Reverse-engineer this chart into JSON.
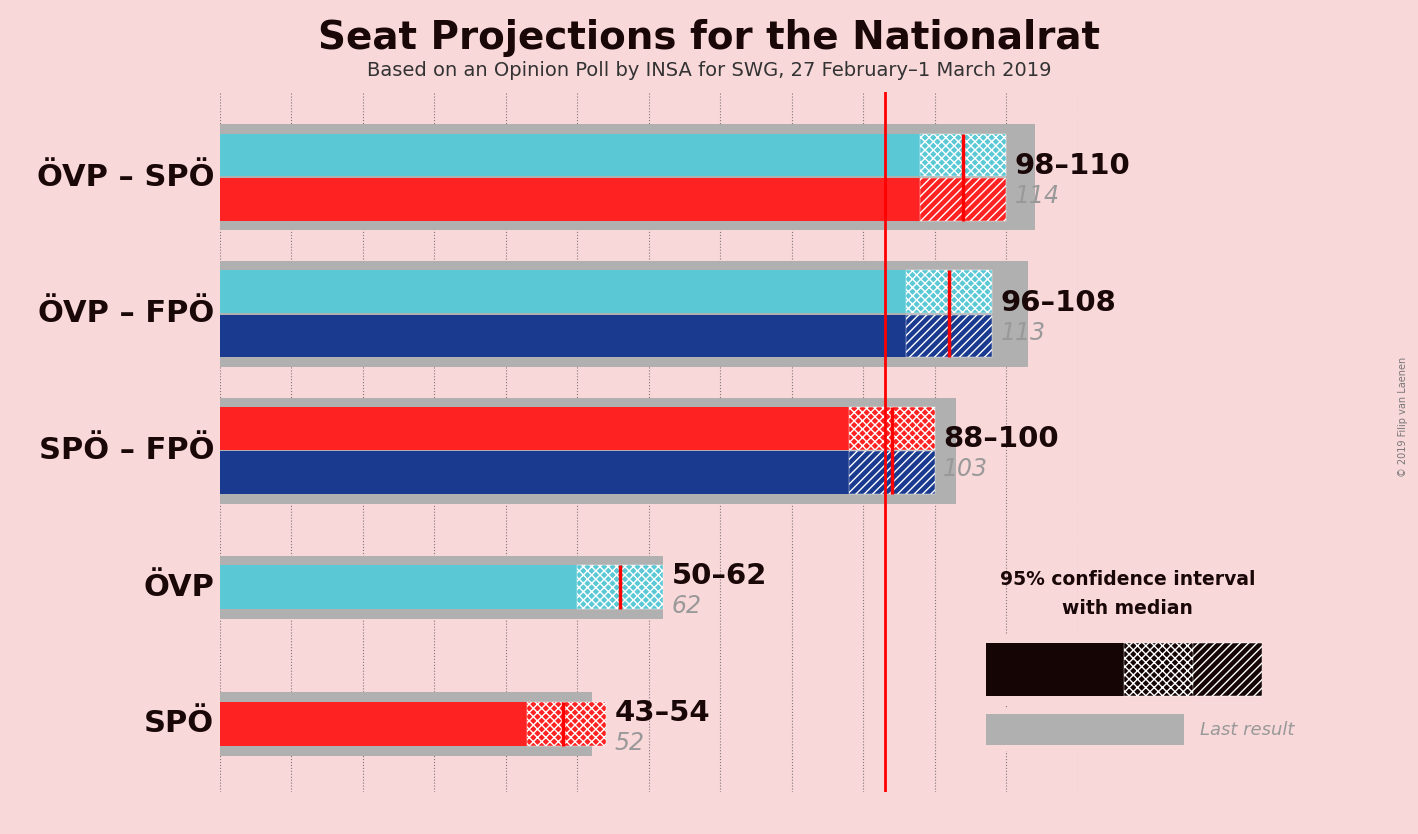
{
  "title": "Seat Projections for the Nationalrat",
  "subtitle": "Based on an Opinion Poll by INSA for SWG, 27 February–1 March 2019",
  "background_color": "#f9d8da",
  "majority_line": 93,
  "copyright": "© 2019 Filip van Laenen",
  "bars": [
    {
      "label": "ÖVP – SPÖ",
      "top_color": "#5bc8d5",
      "bottom_color": "#ff2222",
      "ci_low": 98,
      "ci_high": 110,
      "median": 104,
      "last_result": 114,
      "range_label": "98–110",
      "last_label": "114",
      "coalition": true
    },
    {
      "label": "ÖVP – FPÖ",
      "top_color": "#5bc8d5",
      "bottom_color": "#1a3a8f",
      "ci_low": 96,
      "ci_high": 108,
      "median": 102,
      "last_result": 113,
      "range_label": "96–108",
      "last_label": "113",
      "coalition": true
    },
    {
      "label": "SPÖ – FPÖ",
      "top_color": "#ff2222",
      "bottom_color": "#1a3a8f",
      "ci_low": 88,
      "ci_high": 100,
      "median": 94,
      "last_result": 103,
      "range_label": "88–100",
      "last_label": "103",
      "coalition": true
    },
    {
      "label": "ÖVP",
      "top_color": "#5bc8d5",
      "bottom_color": null,
      "ci_low": 50,
      "ci_high": 62,
      "median": 56,
      "last_result": 62,
      "range_label": "50–62",
      "last_label": "62",
      "coalition": false
    },
    {
      "label": "SPÖ",
      "top_color": "#ff2222",
      "bottom_color": null,
      "ci_low": 43,
      "ci_high": 54,
      "median": 48,
      "last_result": 52,
      "range_label": "43–54",
      "last_label": "52",
      "coalition": false
    }
  ],
  "x_tick_spacing": 10,
  "x_max": 120,
  "label_fontsize": 22,
  "range_fontsize": 21,
  "last_fontsize": 17,
  "title_fontsize": 28,
  "subtitle_fontsize": 14
}
